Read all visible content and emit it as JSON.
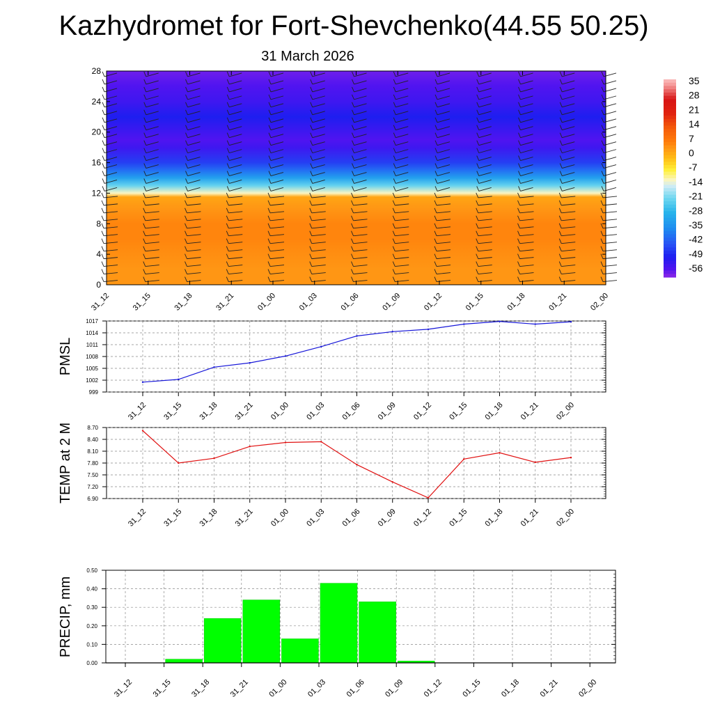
{
  "title": "Kazhydromet for Fort-Shevchenko(44.55 50.25)",
  "subtitle": "31 March 2026",
  "chart_data": [
    {
      "type": "heatmap",
      "name": "vertical-profile",
      "x_ticks": [
        "31_12",
        "31_15",
        "31_18",
        "31_21",
        "01_00",
        "01_03",
        "01_06",
        "01_09",
        "01_12",
        "01_15",
        "01_18",
        "01_21",
        "02_00"
      ],
      "y_ticks": [
        0,
        4,
        8,
        12,
        16,
        20,
        24,
        28
      ],
      "ylim": [
        0,
        28
      ],
      "color_scale_labels": [
        "35",
        "28",
        "21",
        "14",
        "7",
        "0",
        "-7",
        "-14",
        "-21",
        "-28",
        "-35",
        "-42",
        "-49",
        "-56"
      ],
      "value_range": [
        -60,
        38
      ],
      "level_profile_values": {
        "levels": [
          0,
          2,
          4,
          6,
          8,
          10,
          11.5,
          12,
          13,
          14,
          15,
          16,
          18,
          19,
          20,
          22,
          24,
          26,
          28
        ],
        "values": [
          4,
          4,
          5,
          6,
          6,
          4,
          2,
          -12,
          -22,
          -32,
          -40,
          -46,
          -54,
          -56,
          -54,
          -50,
          -54,
          -56,
          -58
        ]
      }
    },
    {
      "type": "line",
      "name": "pmsl",
      "ylabel": "PMSL",
      "categories": [
        "31_12",
        "31_15",
        "31_18",
        "31_21",
        "01_00",
        "01_03",
        "01_06",
        "01_09",
        "01_12",
        "01_15",
        "01_18",
        "01_21",
        "02_00"
      ],
      "values": [
        1001.5,
        1002.2,
        1005.3,
        1006.4,
        1008.1,
        1010.5,
        1013.2,
        1014.3,
        1014.9,
        1016.2,
        1016.9,
        1016.2,
        1016.8
      ],
      "y_ticks": [
        "1017",
        "1014",
        "1011",
        "1008",
        "1005",
        "1002",
        "999"
      ],
      "ylim": [
        999,
        1017
      ],
      "color": "#1515d8"
    },
    {
      "type": "line",
      "name": "temp-2m",
      "ylabel": "TEMP at 2 M",
      "categories": [
        "31_12",
        "31_15",
        "31_18",
        "31_21",
        "01_00",
        "01_03",
        "01_06",
        "01_09",
        "01_12",
        "01_15",
        "01_18",
        "01_21",
        "02_00"
      ],
      "values": [
        8.62,
        7.8,
        7.92,
        8.22,
        8.32,
        8.34,
        7.76,
        7.32,
        6.92,
        7.9,
        8.06,
        7.82,
        7.94
      ],
      "y_ticks": [
        "8.70",
        "8.40",
        "8.10",
        "7.80",
        "7.50",
        "7.20",
        "6.90"
      ],
      "ylim": [
        6.9,
        8.7
      ],
      "color": "#e01010"
    },
    {
      "type": "bar",
      "name": "precip",
      "ylabel": "PRECIP, mm",
      "categories": [
        "31_12",
        "31_15",
        "31_18",
        "31_21",
        "01_00",
        "01_03",
        "01_06",
        "01_09",
        "01_12",
        "01_15",
        "01_18",
        "01_21",
        "02_00"
      ],
      "values": [
        0.0,
        0.02,
        0.24,
        0.34,
        0.13,
        0.43,
        0.33,
        0.01,
        0.0,
        0.0,
        0.0,
        0.0,
        0.0
      ],
      "y_ticks": [
        "0.50",
        "0.40",
        "0.30",
        "0.20",
        "0.10",
        "0.00"
      ],
      "ylim": [
        0,
        0.5
      ],
      "color": "#00ff00"
    }
  ]
}
